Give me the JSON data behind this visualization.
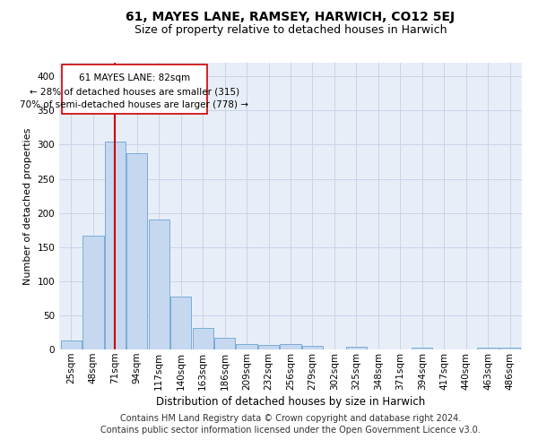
{
  "title": "61, MAYES LANE, RAMSEY, HARWICH, CO12 5EJ",
  "subtitle": "Size of property relative to detached houses in Harwich",
  "xlabel": "Distribution of detached houses by size in Harwich",
  "ylabel": "Number of detached properties",
  "footer_line1": "Contains HM Land Registry data © Crown copyright and database right 2024.",
  "footer_line2": "Contains public sector information licensed under the Open Government Licence v3.0.",
  "categories": [
    "25sqm",
    "48sqm",
    "71sqm",
    "94sqm",
    "117sqm",
    "140sqm",
    "163sqm",
    "186sqm",
    "209sqm",
    "232sqm",
    "256sqm",
    "279sqm",
    "302sqm",
    "325sqm",
    "348sqm",
    "371sqm",
    "394sqm",
    "417sqm",
    "440sqm",
    "463sqm",
    "486sqm"
  ],
  "values": [
    13,
    167,
    305,
    288,
    190,
    77,
    32,
    17,
    8,
    7,
    8,
    5,
    0,
    4,
    0,
    0,
    2,
    0,
    0,
    2,
    2
  ],
  "bar_color": "#c5d8f0",
  "bar_edge_color": "#7aadd4",
  "property_line_x": 2.0,
  "annotation_line1": "61 MAYES LANE: 82sqm",
  "annotation_line2": "← 28% of detached houses are smaller (315)",
  "annotation_line3": "70% of semi-detached houses are larger (778) →",
  "red_line_color": "#cc0000",
  "annotation_box_facecolor": "#ffffff",
  "annotation_box_edgecolor": "#cc0000",
  "grid_color": "#c8d4e8",
  "background_color": "#e8eef8",
  "ylim": [
    0,
    420
  ],
  "yticks": [
    0,
    50,
    100,
    150,
    200,
    250,
    300,
    350,
    400
  ],
  "title_fontsize": 10,
  "subtitle_fontsize": 9,
  "xlabel_fontsize": 8.5,
  "ylabel_fontsize": 8,
  "tick_fontsize": 7.5,
  "annotation_fontsize": 7.5,
  "footer_fontsize": 7
}
